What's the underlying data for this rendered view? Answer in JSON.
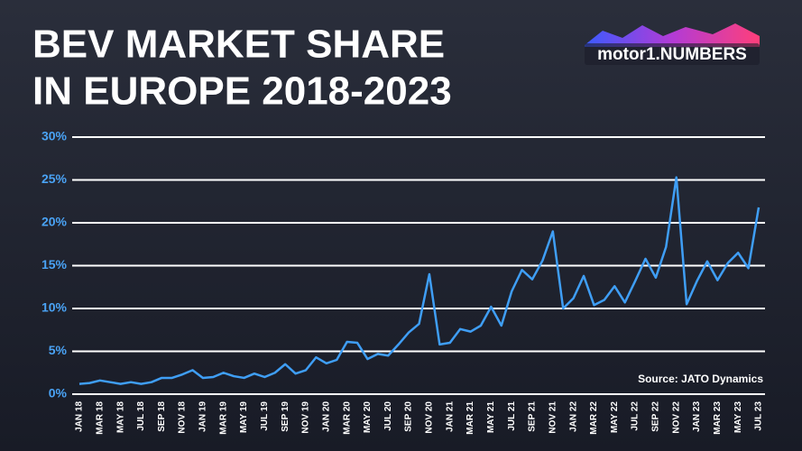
{
  "chart_data": {
    "type": "line",
    "title": [
      "BEV MARKET SHARE",
      "IN EUROPE 2018-2023"
    ],
    "logo": "motor1.NUMBERS",
    "source": "Source: JATO Dynamics",
    "color": "#3f9ef5",
    "grid": true,
    "categories": [
      "JAN 18",
      null,
      "MAR 18",
      null,
      "MAY 18",
      null,
      "JUL 18",
      null,
      "SEP 18",
      null,
      "NOV 18",
      null,
      "JAN 19",
      null,
      "MAR 19",
      null,
      "MAY 19",
      null,
      "JUL 19",
      null,
      "SEP 19",
      null,
      "NOV 19",
      null,
      "JAN 20",
      null,
      "MAR 20",
      null,
      "MAY 20",
      null,
      "JUL 20",
      null,
      "SEP 20",
      null,
      "NOV 20",
      null,
      "JAN 21",
      null,
      "MAR 21",
      null,
      "MAY 21",
      null,
      "JUL 21",
      null,
      "SEP 21",
      null,
      "NOV 21",
      null,
      "JAN 22",
      null,
      "MAR 22",
      null,
      "MAY 22",
      null,
      "JUL 22",
      null,
      "SEP 22",
      null,
      "NOV 22",
      null,
      "JAN 23",
      null,
      "MAR 23",
      null,
      "MAY 23",
      null,
      "JUL 23"
    ],
    "values": [
      1.2,
      1.3,
      1.6,
      1.4,
      1.2,
      1.4,
      1.2,
      1.4,
      1.9,
      1.9,
      2.3,
      2.8,
      1.9,
      2.0,
      2.5,
      2.1,
      1.9,
      2.4,
      2.0,
      2.5,
      3.5,
      2.4,
      2.8,
      4.3,
      3.6,
      4.0,
      6.1,
      6.0,
      4.1,
      4.7,
      4.5,
      5.8,
      7.2,
      8.2,
      14.0,
      5.8,
      6.0,
      7.6,
      7.3,
      8.0,
      10.2,
      8.0,
      12.0,
      14.5,
      13.4,
      15.6,
      19.0,
      10.0,
      11.2,
      13.8,
      10.4,
      11.0,
      12.6,
      10.7,
      13.2,
      15.8,
      13.6,
      17.2,
      25.3,
      10.5,
      13.2,
      15.5,
      13.3,
      15.3,
      16.5,
      14.7,
      21.8
    ],
    "ylim": [
      0,
      30
    ],
    "yticks": [
      {
        "value": 0,
        "label": "0%"
      },
      {
        "value": 5,
        "label": "5%"
      },
      {
        "value": 10,
        "label": "10%"
      },
      {
        "value": 15,
        "label": "15%"
      },
      {
        "value": 20,
        "label": "20%"
      },
      {
        "value": 25,
        "label": "25%"
      },
      {
        "value": 30,
        "label": "30%"
      }
    ]
  }
}
